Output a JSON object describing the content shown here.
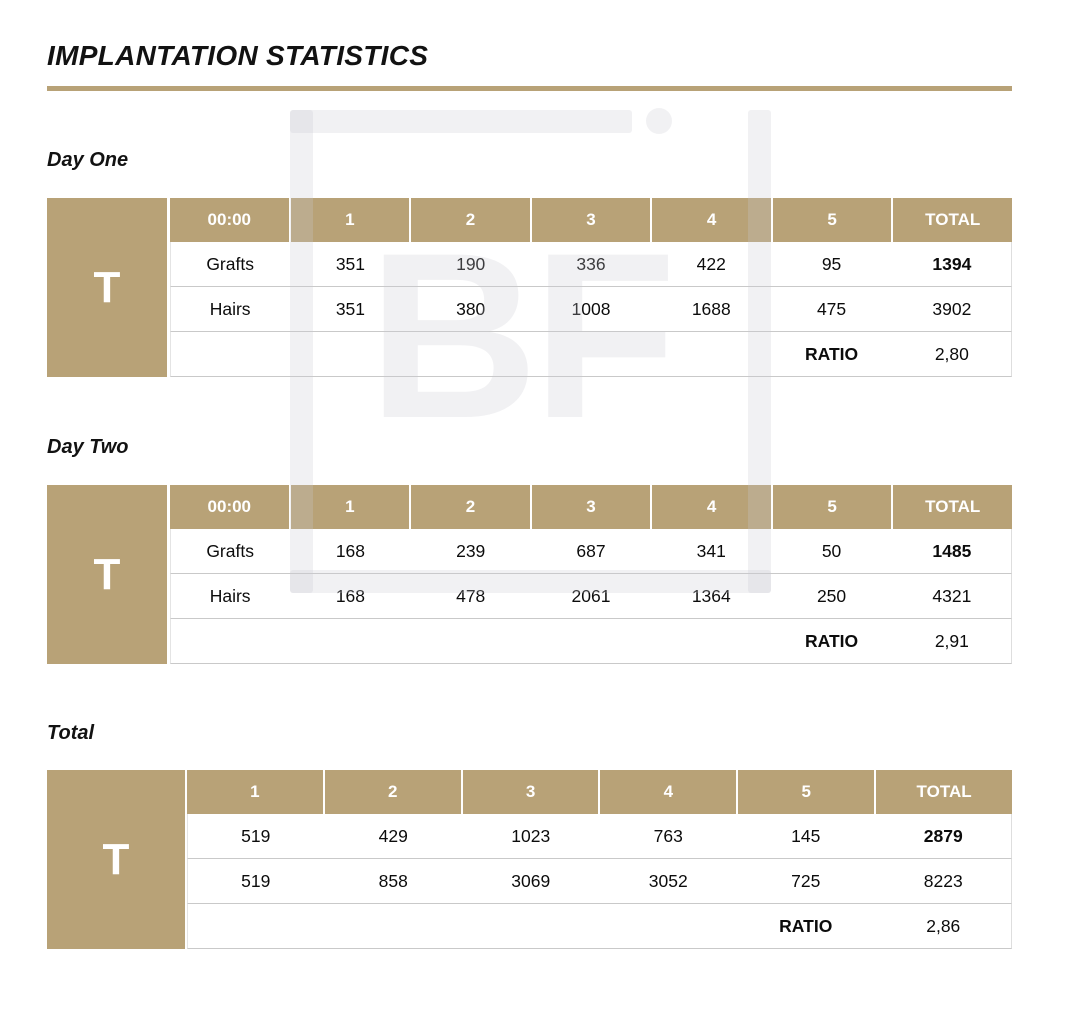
{
  "title": "IMPLANTATION STATISTICS",
  "accent_color": "#b8a277",
  "watermark": {
    "letters": "BF"
  },
  "day_one": {
    "label": "Day One",
    "marker": "T",
    "headers": [
      "00:00",
      "1",
      "2",
      "3",
      "4",
      "5",
      "TOTAL"
    ],
    "grafts": {
      "label": "Grafts",
      "values": [
        "351",
        "190",
        "336",
        "422",
        "95"
      ],
      "total": "1394"
    },
    "hairs": {
      "label": "Hairs",
      "values": [
        "351",
        "380",
        "1008",
        "1688",
        "475"
      ],
      "total": "3902"
    },
    "ratio": {
      "label": "RATIO",
      "value": "2,80"
    }
  },
  "day_two": {
    "label": "Day Two",
    "marker": "T",
    "headers": [
      "00:00",
      "1",
      "2",
      "3",
      "4",
      "5",
      "TOTAL"
    ],
    "grafts": {
      "label": "Grafts",
      "values": [
        "168",
        "239",
        "687",
        "341",
        "50"
      ],
      "total": "1485"
    },
    "hairs": {
      "label": "Hairs",
      "values": [
        "168",
        "478",
        "2061",
        "1364",
        "250"
      ],
      "total": "4321"
    },
    "ratio": {
      "label": "RATIO",
      "value": "2,91"
    }
  },
  "total": {
    "label": "Total",
    "marker": "T",
    "headers": [
      "1",
      "2",
      "3",
      "4",
      "5",
      "TOTAL"
    ],
    "grafts_row": {
      "values": [
        "519",
        "429",
        "1023",
        "763",
        "145"
      ],
      "total": "2879"
    },
    "hairs_row": {
      "values": [
        "519",
        "858",
        "3069",
        "3052",
        "725"
      ],
      "total": "8223"
    },
    "ratio": {
      "label": "RATIO",
      "value": "2,86"
    }
  }
}
